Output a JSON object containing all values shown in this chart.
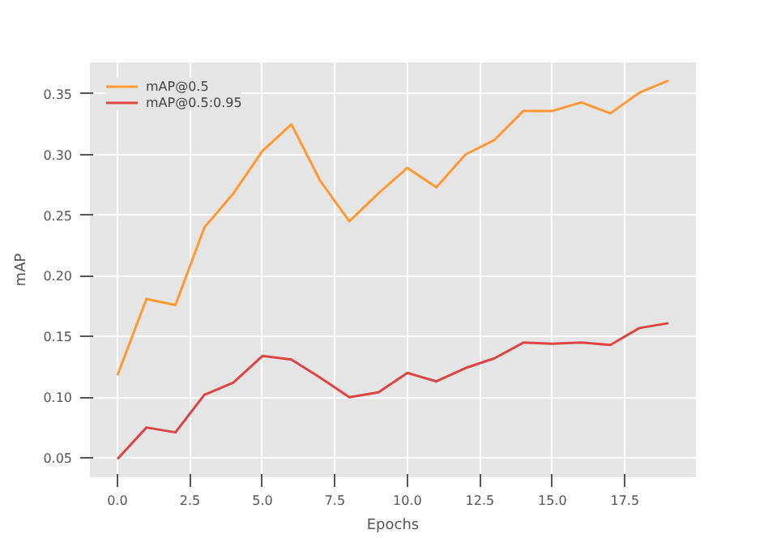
{
  "chart_data": {
    "type": "line",
    "xlabel": "Epochs",
    "ylabel": "mAP",
    "x": [
      0,
      1,
      2,
      3,
      4,
      5,
      6,
      7,
      8,
      9,
      10,
      11,
      12,
      13,
      14,
      15,
      16,
      17,
      18,
      19
    ],
    "series": [
      {
        "name": "mAP@0.5",
        "color": "#ff9933",
        "values": [
          0.118,
          0.181,
          0.176,
          0.24,
          0.268,
          0.303,
          0.325,
          0.278,
          0.245,
          0.268,
          0.289,
          0.273,
          0.3,
          0.312,
          0.336,
          0.336,
          0.343,
          0.334,
          0.351,
          0.361
        ]
      },
      {
        "name": "mAP@0.5:0.95",
        "color": "#dd4444",
        "values": [
          0.049,
          0.075,
          0.071,
          0.102,
          0.112,
          0.134,
          0.131,
          0.116,
          0.1,
          0.104,
          0.12,
          0.113,
          0.124,
          0.132,
          0.145,
          0.144,
          0.145,
          0.143,
          0.157,
          0.161
        ]
      }
    ],
    "xlim": [
      -0.95,
      19.95
    ],
    "ylim": [
      0.034,
      0.376
    ],
    "xticks": [
      {
        "value": 0,
        "label": "0.0"
      },
      {
        "value": 2.5,
        "label": "2.5"
      },
      {
        "value": 5,
        "label": "5.0"
      },
      {
        "value": 7.5,
        "label": "7.5"
      },
      {
        "value": 10,
        "label": "10.0"
      },
      {
        "value": 12.5,
        "label": "12.5"
      },
      {
        "value": 15,
        "label": "15.0"
      },
      {
        "value": 17.5,
        "label": "17.5"
      }
    ],
    "yticks": [
      0.05,
      {
        "value": 0.1,
        "label": "0.10"
      },
      0.15,
      {
        "value": 0.2,
        "label": "0.20"
      },
      0.25,
      {
        "value": 0.3,
        "label": "0.30"
      },
      0.35
    ],
    "grid": true,
    "legend": "top left",
    "marker": "none",
    "line_style": "solid"
  }
}
